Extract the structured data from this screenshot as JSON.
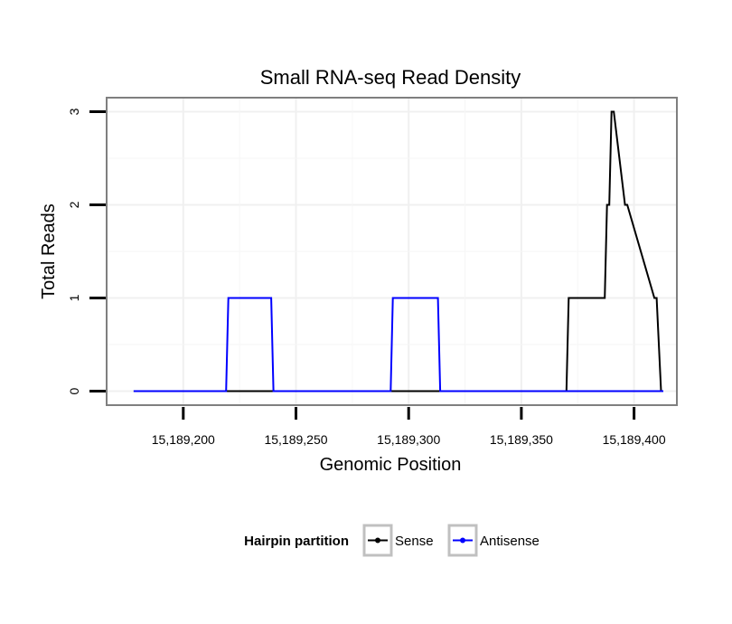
{
  "chart_data": {
    "type": "line",
    "title": "Small RNA-seq Read Density",
    "xlabel": "Genomic Position",
    "ylabel": "Total Reads",
    "xlim": [
      15189166,
      15189419
    ],
    "ylim": [
      -0.15,
      3.15
    ],
    "xticks": [
      15189200,
      15189250,
      15189300,
      15189350,
      15189400
    ],
    "xtick_labels": [
      "15,189,200",
      "15,189,250",
      "15,189,300",
      "15,189,350",
      "15,189,400"
    ],
    "yticks": [
      0,
      1,
      2,
      3
    ],
    "ytick_labels": [
      "0",
      "1",
      "2",
      "3"
    ],
    "grid": true,
    "legend": {
      "title": "Hairpin partition",
      "position": "bottom"
    },
    "series": [
      {
        "name": "Sense",
        "color": "#000000",
        "x": [
          15189178,
          15189370,
          15189371,
          15189387,
          15189388,
          15189389,
          15189390,
          15189391,
          15189396,
          15189397,
          15189409,
          15189410,
          15189412,
          15189413
        ],
        "y": [
          0,
          0,
          1,
          1,
          2,
          2,
          3,
          3,
          2,
          2,
          1,
          1,
          0,
          0
        ]
      },
      {
        "name": "Antisense",
        "color": "#0000ff",
        "x": [
          15189178,
          15189219,
          15189220,
          15189239,
          15189240,
          15189292,
          15189293,
          15189313,
          15189314,
          15189413
        ],
        "y": [
          0,
          0,
          1,
          1,
          0,
          0,
          1,
          1,
          0,
          0
        ]
      }
    ]
  }
}
